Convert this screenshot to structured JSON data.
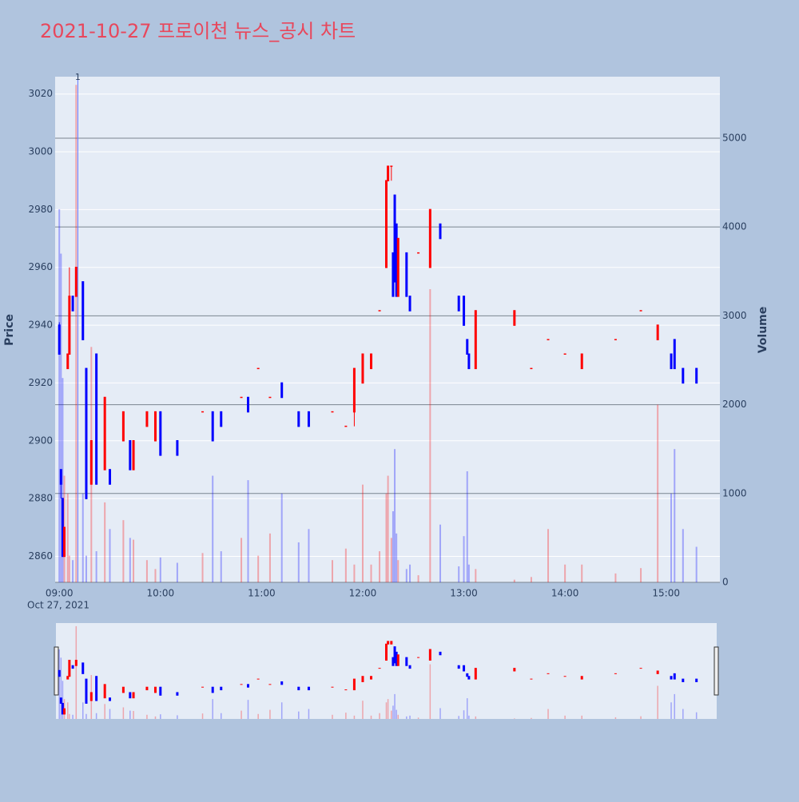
{
  "chart_data": {
    "type": "candlestick",
    "title": "2021-10-27 프로이천 뉴스_공시 차트",
    "y_label": "Price",
    "y2_label": "Volume",
    "x_date_label": "Oct 27, 2021",
    "xlim": [
      "08:58",
      "15:30"
    ],
    "xticks": [
      "09:00",
      "10:00",
      "11:00",
      "12:00",
      "13:00",
      "14:00",
      "15:00"
    ],
    "ylim": [
      2851,
      3026
    ],
    "yticks": [
      2860,
      2880,
      2900,
      2920,
      2940,
      2960,
      2980,
      3000,
      3020
    ],
    "y2lim": [
      0,
      5692
    ],
    "y2ticks": [
      0,
      1000,
      2000,
      3000,
      4000,
      5000
    ],
    "increasing_color": "#ff0000",
    "decreasing_color": "#0000ff",
    "grid": true,
    "annotation": {
      "x": "09:11",
      "text": "1"
    },
    "x": [
      "09:00",
      "09:01",
      "09:02",
      "09:03",
      "09:05",
      "09:06",
      "09:08",
      "09:10",
      "09:14",
      "09:16",
      "09:19",
      "09:22",
      "09:27",
      "09:30",
      "09:38",
      "09:42",
      "09:44",
      "09:52",
      "09:57",
      "10:00",
      "10:10",
      "10:25",
      "10:31",
      "10:36",
      "10:48",
      "10:52",
      "10:58",
      "11:05",
      "11:12",
      "11:22",
      "11:28",
      "11:42",
      "11:50",
      "11:55",
      "12:00",
      "12:05",
      "12:10",
      "12:14",
      "12:15",
      "12:17",
      "12:18",
      "12:19",
      "12:20",
      "12:21",
      "12:26",
      "12:28",
      "12:33",
      "12:40",
      "12:46",
      "12:57",
      "13:00",
      "13:02",
      "13:03",
      "13:07",
      "13:30",
      "13:40",
      "13:50",
      "14:00",
      "14:10",
      "14:30",
      "14:45",
      "14:55",
      "15:03",
      "15:05",
      "15:10",
      "15:18"
    ],
    "open": [
      2940,
      2890,
      2880,
      2860,
      2925,
      2930,
      2950,
      2950,
      2955,
      2925,
      2885,
      2930,
      2890,
      2890,
      2900,
      2900,
      2890,
      2905,
      2900,
      2910,
      2900,
      2910,
      2910,
      2910,
      2915,
      2915,
      2925,
      2915,
      2920,
      2910,
      2910,
      2910,
      2905,
      2910,
      2920,
      2925,
      2945,
      2960,
      2990,
      2995,
      2965,
      2985,
      2975,
      2950,
      2965,
      2950,
      2965,
      2960,
      2975,
      2950,
      2950,
      2935,
      2930,
      2925,
      2940,
      2925,
      2935,
      2930,
      2925,
      2935,
      2945,
      2935,
      2930,
      2935,
      2925,
      2925
    ],
    "high": [
      2941,
      2890,
      2880,
      2870,
      2930,
      2960,
      2950,
      2960,
      2955,
      2925,
      2900,
      2930,
      2915,
      2890,
      2910,
      2900,
      2900,
      2910,
      2910,
      2910,
      2900,
      2910,
      2910,
      2910,
      2915,
      2915,
      2925,
      2915,
      2920,
      2910,
      2910,
      2910,
      2905,
      2925,
      2930,
      2930,
      2945,
      2990,
      2995,
      2995,
      2965,
      2985,
      2975,
      2970,
      2965,
      2950,
      2965,
      2980,
      2975,
      2950,
      2950,
      2935,
      2930,
      2945,
      2945,
      2925,
      2935,
      2930,
      2930,
      2935,
      2945,
      2940,
      2930,
      2935,
      2925,
      2925
    ],
    "low": [
      2930,
      2880,
      2860,
      2860,
      2925,
      2930,
      2945,
      2950,
      2935,
      2880,
      2885,
      2885,
      2890,
      2885,
      2900,
      2890,
      2890,
      2905,
      2900,
      2895,
      2895,
      2910,
      2900,
      2905,
      2915,
      2910,
      2925,
      2915,
      2915,
      2905,
      2905,
      2910,
      2905,
      2905,
      2920,
      2925,
      2945,
      2960,
      2990,
      2990,
      2950,
      2955,
      2950,
      2950,
      2950,
      2945,
      2965,
      2960,
      2970,
      2945,
      2940,
      2930,
      2925,
      2925,
      2940,
      2925,
      2935,
      2930,
      2925,
      2935,
      2945,
      2935,
      2925,
      2925,
      2920,
      2920
    ],
    "close": [
      2930,
      2885,
      2860,
      2870,
      2930,
      2950,
      2945,
      2960,
      2935,
      2880,
      2900,
      2885,
      2915,
      2885,
      2910,
      2890,
      2900,
      2910,
      2910,
      2895,
      2895,
      2910,
      2900,
      2905,
      2915,
      2910,
      2925,
      2915,
      2915,
      2905,
      2905,
      2910,
      2905,
      2925,
      2930,
      2930,
      2945,
      2990,
      2995,
      2995,
      2950,
      2955,
      2950,
      2970,
      2950,
      2945,
      2965,
      2980,
      2970,
      2945,
      2940,
      2930,
      2925,
      2945,
      2945,
      2925,
      2935,
      2930,
      2930,
      2935,
      2945,
      2940,
      2925,
      2925,
      2920,
      2920
    ],
    "volume": [
      4200,
      3700,
      2300,
      1200,
      1000,
      300,
      250,
      5600,
      1000,
      300,
      2650,
      350,
      900,
      600,
      700,
      500,
      480,
      250,
      150,
      280,
      220,
      330,
      1200,
      350,
      500,
      1150,
      300,
      550,
      1000,
      450,
      600,
      250,
      380,
      200,
      1100,
      200,
      350,
      1000,
      1200,
      500,
      800,
      1500,
      550,
      250,
      150,
      200,
      80,
      3300,
      650,
      180,
      520,
      1250,
      200,
      150,
      30,
      60,
      600,
      200,
      200,
      100,
      160,
      2000,
      1000,
      1500,
      600,
      400
    ]
  }
}
